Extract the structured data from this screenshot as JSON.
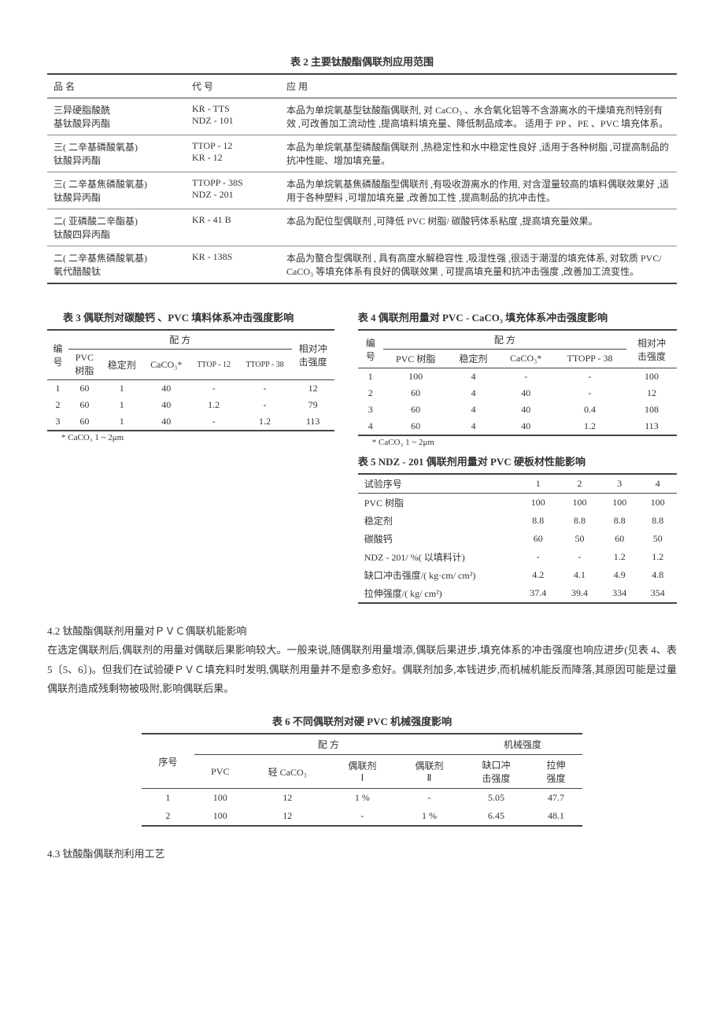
{
  "table2": {
    "title": "表 2  主要钛酸酯偶联剂应用范围",
    "headers": [
      "品        名",
      "代      号",
      "应                    用"
    ],
    "rows": [
      {
        "name": "三异硬脂酸酰\n基钛酸异丙酯",
        "code": "KR - TTS\nNDZ - 101",
        "app": "本品为单烷氧基型钛酸酯偶联剂, 对 CaCO₃ 、水合氧化铝等不含游离水的干燥填充剂特别有效 ,可改善加工流动性 ,提高填料填充量、降低制品成本。 适用于 PP 、PE 、PVC 填充体系。"
      },
      {
        "name": "三( 二辛基磷酸氧基)\n钛酸异丙酯",
        "code": "TTOP - 12\nKR - 12",
        "app": "本品为单烷氧基型磷酸酯偶联剂 ,热稳定性和水中稳定性良好 ,适用于各种树脂 ,可提高制品的抗冲性能、增加填充量。"
      },
      {
        "name": "三( 二辛基焦磷酸氧基)\n钛酸异丙酯",
        "code": "TTOPP - 38S\nNDZ - 201",
        "app": "本品为单烷氧基焦磷酸酯型偶联剂 ,有吸收游离水的作用, 对含湿量较高的填料偶联效果好 ,适用于各种塑料 ,可增加填充量 ,改善加工性 ,提高制品的抗冲击性。"
      },
      {
        "name": "二( 亚磷酸二辛酯基)\n钛酸四异丙酯",
        "code": "KR - 41 B",
        "app": "本品为配位型偶联剂 ,可降低 PVC 树脂/ 碳酸钙体系粘度 ,提高填充量效果。"
      },
      {
        "name": "二( 二辛基焦磷酸氧基)\n氧代醋酸钛",
        "code": "KR - 138S",
        "app": "本品为螯合型偶联剂 , 具有高度水解稳容性 ,吸湿性强 ,很适于潮湿的填充体系, 对软质 PVC/ CaCO₃ 等填充体系有良好的偶联效果 , 可提高填充量和抗冲击强度 ,改善加工流变性。"
      }
    ]
  },
  "table3": {
    "title": "表 3  偶联剂对碳酸钙 、PVC 填料体系冲击强度影响",
    "group_hdr": "配      方",
    "rel_hdr": "相对冲\n击强度",
    "subheaders": [
      "编\n号",
      "PVC\n树脂",
      "稳定剂",
      "CaCO₃*",
      "TTOP - 12",
      "TTOPP - 38"
    ],
    "rows": [
      [
        "1",
        "60",
        "1",
        "40",
        "-",
        "-",
        "12"
      ],
      [
        "2",
        "60",
        "1",
        "40",
        "1.2",
        "-",
        "79"
      ],
      [
        "3",
        "60",
        "1",
        "40",
        "-",
        "1.2",
        "113"
      ]
    ],
    "note": "* CaCO₃ 1 ~ 2μm"
  },
  "table4": {
    "title": "表 4  偶联剂用量对 PVC - CaCO₃ 填充体系冲击强度影响",
    "group_hdr": "配      方",
    "rel_hdr": "相对冲\n击强度",
    "subheaders": [
      "编\n号",
      "PVC 树脂",
      "稳定剂",
      "CaCO₃*",
      "TTOPP - 38"
    ],
    "rows": [
      [
        "1",
        "100",
        "4",
        "-",
        "-",
        "100"
      ],
      [
        "2",
        "60",
        "4",
        "40",
        "-",
        "12"
      ],
      [
        "3",
        "60",
        "4",
        "40",
        "0.4",
        "108"
      ],
      [
        "4",
        "60",
        "4",
        "40",
        "1.2",
        "113"
      ]
    ],
    "note": "* CaCO₃ 1 ~ 2μm"
  },
  "table5": {
    "title": "表 5  NDZ - 201 偶联剂用量对 PVC 硬板材性能影响",
    "headers": [
      "试验序号",
      "1",
      "2",
      "3",
      "4"
    ],
    "rows": [
      [
        "PVC 树脂",
        "100",
        "100",
        "100",
        "100"
      ],
      [
        "稳定剂",
        "8.8",
        "8.8",
        "8.8",
        "8.8"
      ],
      [
        "碳酸钙",
        "60",
        "50",
        "60",
        "50"
      ],
      [
        "NDZ - 201/ %( 以填料计)",
        "-",
        "-",
        "1.2",
        "1.2"
      ],
      [
        "缺口冲击强度/( kg·cm/ cm²)",
        "4.2",
        "4.1",
        "4.9",
        "4.8"
      ],
      [
        "拉伸强度/( kg/ cm²)",
        "37.4",
        "39.4",
        "334",
        "354"
      ]
    ]
  },
  "section42": {
    "heading": "4.2  钛酸酯偶联剂用量对ＰＶＣ偶联机能影响",
    "para": "在选定偶联剂后,偶联剂的用量对偶联后果影响较大。一般来说,随偶联剂用量增添,偶联后果进步,填充体系的冲击强度也响应进步(见表 4、表 5〔5、6〕)。但我们在试验硬ＰＶＣ填充料时发明,偶联剂用量并不是愈多愈好。偶联剂加多,本钱进步,而机械机能反而降落,其原因可能是过量偶联剂造成残剩物被吸附,影响偶联后果。"
  },
  "table6": {
    "title": "表 6  不同偶联剂对硬 PVC 机械强度影响",
    "group1": "配      方",
    "group2": "机械强度",
    "subheaders": [
      "序号",
      "PVC",
      "轻 CaCO₃",
      "偶联剂\nⅠ",
      "偶联剂\nⅡ",
      "缺口冲\n击强度",
      "拉伸\n强度"
    ],
    "rows": [
      [
        "1",
        "100",
        "12",
        "1 %",
        "-",
        "5.05",
        "47.7"
      ],
      [
        "2",
        "100",
        "12",
        "-",
        "1 %",
        "6.45",
        "48.1"
      ]
    ]
  },
  "section43": {
    "heading": "4.3  钛酸酯偶联剂利用工艺"
  }
}
